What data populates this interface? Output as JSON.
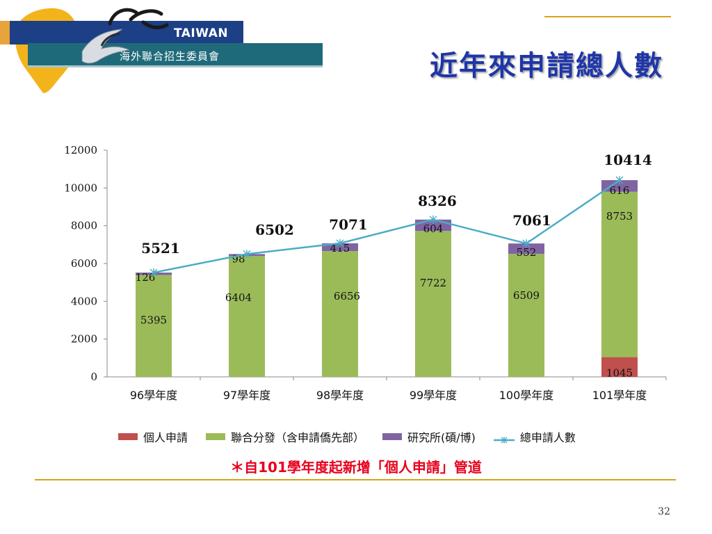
{
  "header": {
    "logo_brand": "TAIWAN",
    "logo_sub": "海外聯合招生委員會",
    "title": "近年來申請總人數"
  },
  "colors": {
    "individual": "#c0504d",
    "joint": "#9bbb59",
    "graduate": "#8064a2",
    "total": "#4bacc6",
    "title": "#1f36a8",
    "note": "#e8001c",
    "accent_line": "#d7a21a"
  },
  "chart_data": {
    "type": "bar",
    "stacked": true,
    "categories": [
      "96學年度",
      "97學年度",
      "98學年度",
      "99學年度",
      "100學年度",
      "101學年度"
    ],
    "series": [
      {
        "name": "個人申請",
        "values": [
          0,
          0,
          0,
          0,
          0,
          1045
        ]
      },
      {
        "name": "聯合分發（含申請僑先部）",
        "values": [
          5395,
          6404,
          6656,
          7722,
          6509,
          8753
        ]
      },
      {
        "name": "研究所(碩/博)",
        "values": [
          126,
          98,
          415,
          604,
          552,
          616
        ]
      }
    ],
    "line_series": {
      "name": "總申請人數",
      "values": [
        5521,
        6502,
        7071,
        8326,
        7061,
        10414
      ]
    },
    "ylim": [
      0,
      12000
    ],
    "yticks": [
      0,
      2000,
      4000,
      6000,
      8000,
      10000,
      12000
    ],
    "legend": "bottom",
    "grid": false
  },
  "footer": {
    "note": "＊自101學年度起新增「個人申請」管道",
    "page_number": "32"
  }
}
